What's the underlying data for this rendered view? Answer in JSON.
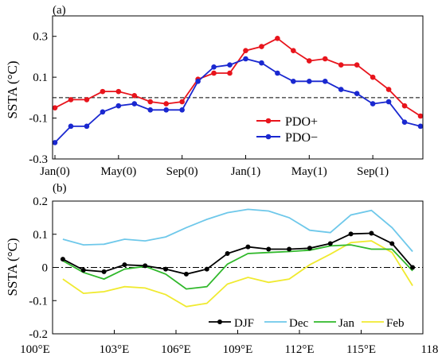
{
  "chart_data": [
    {
      "panel_label": "(a)",
      "type": "line",
      "ylabel": "SSTA (°C)",
      "ylim": [
        -0.3,
        0.4
      ],
      "yticks": [
        -0.3,
        -0.1,
        0.1,
        0.3
      ],
      "ytick_labels": [
        "-0.3",
        "-0.1",
        "0.1",
        "0.3"
      ],
      "x": [
        "Jan(0)",
        "Feb(0)",
        "Mar(0)",
        "Apr(0)",
        "May(0)",
        "Jun(0)",
        "Jul(0)",
        "Aug(0)",
        "Sep(0)",
        "Oct(0)",
        "Nov(0)",
        "Dec(0)",
        "Jan(1)",
        "Feb(1)",
        "Mar(1)",
        "Apr(1)",
        "May(1)",
        "Jun(1)",
        "Jul(1)",
        "Aug(1)",
        "Sep(1)",
        "Oct(1)",
        "Nov(1)",
        "Dec(1)"
      ],
      "xtick_labels": [
        "Jan(0)",
        "May(0)",
        "Sep(0)",
        "Jan(1)",
        "May(1)",
        "Sep(1)"
      ],
      "xtick_index": [
        0,
        4,
        8,
        12,
        16,
        20
      ],
      "reference_line": 0.0,
      "legend_position": "lower-right",
      "series": [
        {
          "name": "PDO+",
          "color": "#e8141c",
          "values": [
            -0.05,
            -0.01,
            -0.01,
            0.03,
            0.03,
            0.01,
            -0.02,
            -0.03,
            -0.02,
            0.09,
            0.12,
            0.12,
            0.23,
            0.25,
            0.29,
            0.23,
            0.18,
            0.19,
            0.16,
            0.16,
            0.1,
            0.04,
            -0.04,
            -0.09
          ]
        },
        {
          "name": "PDO−",
          "color": "#1a28d0",
          "values": [
            -0.22,
            -0.14,
            -0.14,
            -0.07,
            -0.04,
            -0.03,
            -0.06,
            -0.06,
            -0.06,
            0.08,
            0.15,
            0.16,
            0.19,
            0.17,
            0.12,
            0.08,
            0.08,
            0.08,
            0.04,
            0.02,
            -0.03,
            -0.02,
            -0.12,
            -0.14
          ]
        }
      ]
    },
    {
      "panel_label": "(b)",
      "type": "line",
      "ylabel": "SSTA (°C)",
      "ylim": [
        -0.2,
        0.2
      ],
      "yticks": [
        -0.2,
        -0.1,
        0.0,
        0.1,
        0.2
      ],
      "ytick_labels": [
        "-0.2",
        "-0.1",
        "0",
        "0.1",
        "0.2"
      ],
      "xlim": [
        100,
        118
      ],
      "xticks": [
        100,
        103,
        106,
        109,
        112,
        115,
        118
      ],
      "xtick_labels": [
        "100°E",
        "103°E",
        "106°E",
        "109°E",
        "112°E",
        "115°E",
        "118°E"
      ],
      "x": [
        100.5,
        101.5,
        102.5,
        103.5,
        104.5,
        105.5,
        106.5,
        107.5,
        108.5,
        109.5,
        110.5,
        111.5,
        112.5,
        113.5,
        114.5,
        115.5,
        116.5,
        117.5
      ],
      "reference_line": 0.0,
      "legend_position": "bottom-right",
      "series": [
        {
          "name": "DJF",
          "color": "#000000",
          "markers": true,
          "values": [
            0.025,
            -0.008,
            -0.013,
            0.008,
            0.005,
            -0.005,
            -0.02,
            -0.005,
            0.042,
            0.062,
            0.055,
            0.055,
            0.058,
            0.072,
            0.101,
            0.103,
            0.072,
            0.0
          ]
        },
        {
          "name": "Dec",
          "color": "#6ec8ea",
          "values": [
            0.085,
            0.068,
            0.07,
            0.085,
            0.08,
            0.092,
            0.12,
            0.145,
            0.165,
            0.175,
            0.17,
            0.15,
            0.112,
            0.105,
            0.158,
            0.172,
            0.12,
            0.048
          ]
        },
        {
          "name": "Jan",
          "color": "#2fb82a",
          "values": [
            0.02,
            -0.015,
            -0.035,
            -0.005,
            0.003,
            -0.02,
            -0.065,
            -0.058,
            0.01,
            0.042,
            0.045,
            0.048,
            0.052,
            0.065,
            0.068,
            0.055,
            0.055,
            -0.01
          ]
        },
        {
          "name": "Feb",
          "color": "#f0ea30",
          "values": [
            -0.035,
            -0.078,
            -0.073,
            -0.058,
            -0.062,
            -0.082,
            -0.118,
            -0.108,
            -0.05,
            -0.03,
            -0.045,
            -0.035,
            0.008,
            0.04,
            0.075,
            0.08,
            0.045,
            -0.055
          ]
        }
      ]
    }
  ]
}
